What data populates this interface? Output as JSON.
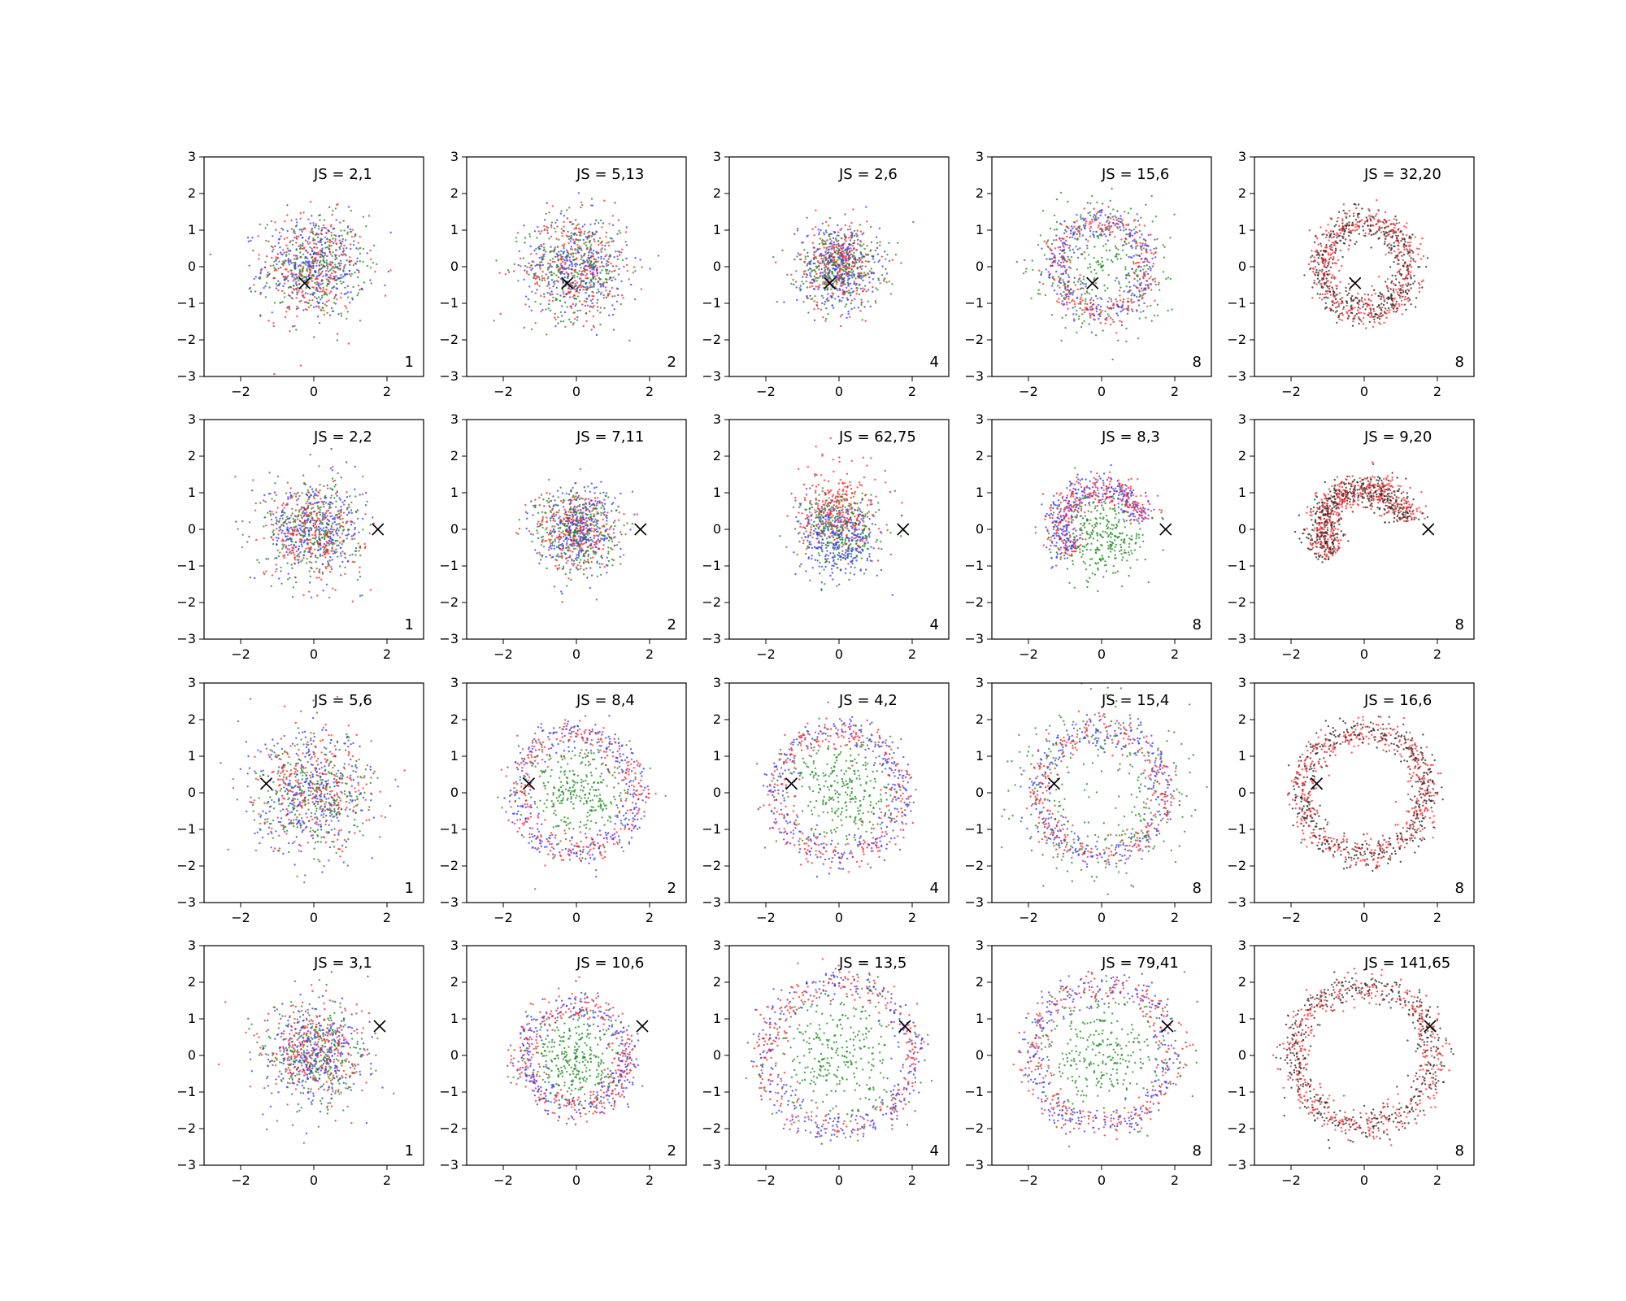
{
  "chart_data": {
    "type": "scatter",
    "xlim": [
      -3,
      3
    ],
    "ylim": [
      -3,
      3
    ],
    "xticks": [
      -2,
      0,
      2
    ],
    "yticks": [
      -3,
      -2,
      -1,
      0,
      1,
      2,
      3
    ],
    "grid": false,
    "legend": "none",
    "colors": {
      "blue": "#3333ff",
      "green": "#1a8a1a",
      "red": "#ff2020",
      "black": "#222222",
      "marker": "#000000"
    },
    "panels": [
      {
        "row": 1,
        "col": 1,
        "label": "JS = 2,1",
        "k": "1",
        "cross": [
          -0.25,
          -0.45
        ],
        "pattern": "blob",
        "radius": 1.0
      },
      {
        "row": 1,
        "col": 2,
        "label": "JS = 5,13",
        "k": "2",
        "cross": [
          -0.25,
          -0.45
        ],
        "pattern": "blob",
        "radius": 1.0
      },
      {
        "row": 1,
        "col": 3,
        "label": "JS = 2,6",
        "k": "4",
        "cross": [
          -0.25,
          -0.45
        ],
        "pattern": "blob",
        "radius": 0.8
      },
      {
        "row": 1,
        "col": 4,
        "label": "JS = 15,6",
        "k": "8",
        "cross": [
          -0.25,
          -0.45
        ],
        "pattern": "ring",
        "radius": 1.2
      },
      {
        "row": 1,
        "col": 5,
        "label": "JS = 32,20",
        "k": "8",
        "cross": [
          -0.25,
          -0.45
        ],
        "pattern": "ringRB",
        "radius": 1.2
      },
      {
        "row": 2,
        "col": 1,
        "label": "JS = 2,2",
        "k": "1",
        "cross": [
          1.75,
          0.0
        ],
        "pattern": "blob",
        "radius": 0.95
      },
      {
        "row": 2,
        "col": 2,
        "label": "JS = 7,11",
        "k": "2",
        "cross": [
          1.75,
          0.0
        ],
        "pattern": "blob",
        "radius": 0.8
      },
      {
        "row": 2,
        "col": 3,
        "label": "JS = 62,75",
        "k": "4",
        "cross": [
          1.75,
          0.0
        ],
        "pattern": "blobSplit",
        "radius": 0.9
      },
      {
        "row": 2,
        "col": 4,
        "label": "JS = 8,3",
        "k": "8",
        "cross": [
          1.75,
          0.0
        ],
        "pattern": "arcTop",
        "radius": 1.4
      },
      {
        "row": 2,
        "col": 5,
        "label": "JS = 9,20",
        "k": "8",
        "cross": [
          1.75,
          0.0
        ],
        "pattern": "arcTopRB",
        "radius": 1.4
      },
      {
        "row": 3,
        "col": 1,
        "label": "JS = 5,6",
        "k": "1",
        "cross": [
          -1.3,
          0.25
        ],
        "pattern": "blob",
        "radius": 1.15
      },
      {
        "row": 3,
        "col": 2,
        "label": "JS = 8,4",
        "k": "2",
        "cross": [
          -1.3,
          0.25
        ],
        "pattern": "ringGreen",
        "radius": 1.6
      },
      {
        "row": 3,
        "col": 3,
        "label": "JS = 4,2",
        "k": "4",
        "cross": [
          -1.3,
          0.25
        ],
        "pattern": "ringGreen",
        "radius": 1.7
      },
      {
        "row": 3,
        "col": 4,
        "label": "JS = 15,4",
        "k": "8",
        "cross": [
          -1.3,
          0.25
        ],
        "pattern": "ring",
        "radius": 1.7
      },
      {
        "row": 3,
        "col": 5,
        "label": "JS = 16,6",
        "k": "8",
        "cross": [
          -1.3,
          0.25
        ],
        "pattern": "ringRB",
        "radius": 1.7
      },
      {
        "row": 4,
        "col": 1,
        "label": "JS = 3,1",
        "k": "1",
        "cross": [
          1.8,
          0.8
        ],
        "pattern": "blob",
        "radius": 1.0
      },
      {
        "row": 4,
        "col": 2,
        "label": "JS = 10,6",
        "k": "2",
        "cross": [
          1.8,
          0.8
        ],
        "pattern": "ringGreen",
        "radius": 1.4
      },
      {
        "row": 4,
        "col": 3,
        "label": "JS = 13,5",
        "k": "4",
        "cross": [
          1.8,
          0.8
        ],
        "pattern": "ringGreen",
        "radius": 2.0
      },
      {
        "row": 4,
        "col": 4,
        "label": "JS = 79,41",
        "k": "8",
        "cross": [
          1.8,
          0.8
        ],
        "pattern": "ringGreen",
        "radius": 1.9
      },
      {
        "row": 4,
        "col": 5,
        "label": "JS = 141,65",
        "k": "8",
        "cross": [
          1.8,
          0.8
        ],
        "pattern": "ringRB",
        "radius": 1.9
      }
    ]
  }
}
